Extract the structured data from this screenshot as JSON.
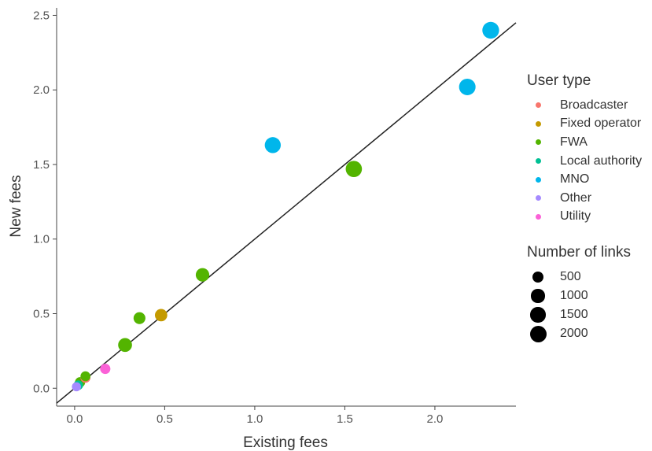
{
  "chart_data": {
    "type": "scatter",
    "xlabel": "Existing fees",
    "ylabel": "New fees",
    "xlim": [
      -0.1,
      2.45
    ],
    "ylim": [
      -0.12,
      2.55
    ],
    "x_ticks": [
      "0.0",
      "0.5",
      "1.0",
      "1.5",
      "2.0"
    ],
    "x_tick_values": [
      0.0,
      0.5,
      1.0,
      1.5,
      2.0
    ],
    "y_ticks": [
      "0.0",
      "0.5",
      "1.0",
      "1.5",
      "2.0",
      "2.5"
    ],
    "y_tick_values": [
      0.0,
      0.5,
      1.0,
      1.5,
      2.0,
      2.5
    ],
    "reference_line": {
      "slope": 1,
      "intercept": 0
    },
    "grid": false,
    "legend_placement": "right",
    "color_legend": {
      "title": "User type",
      "entries": [
        {
          "name": "Broadcaster",
          "color": "#F8766D"
        },
        {
          "name": "Fixed operator",
          "color": "#C49A00"
        },
        {
          "name": "FWA",
          "color": "#53B400"
        },
        {
          "name": "Local authority",
          "color": "#00C094"
        },
        {
          "name": "MNO",
          "color": "#00B6EB"
        },
        {
          "name": "Other",
          "color": "#A58AFF"
        },
        {
          "name": "Utility",
          "color": "#FB61D7"
        }
      ]
    },
    "size_legend": {
      "title": "Number of links",
      "entries": [
        {
          "label": "500",
          "value": 500
        },
        {
          "label": "1000",
          "value": 1000
        },
        {
          "label": "1500",
          "value": 1500
        },
        {
          "label": "2000",
          "value": 2000
        }
      ]
    },
    "points": [
      {
        "x": 2.31,
        "y": 2.4,
        "type": "MNO",
        "links": 2100
      },
      {
        "x": 2.18,
        "y": 2.02,
        "type": "MNO",
        "links": 2000
      },
      {
        "x": 1.1,
        "y": 1.63,
        "type": "MNO",
        "links": 1800
      },
      {
        "x": 1.55,
        "y": 1.47,
        "type": "FWA",
        "links": 1900
      },
      {
        "x": 0.71,
        "y": 0.76,
        "type": "FWA",
        "links": 1000
      },
      {
        "x": 0.36,
        "y": 0.47,
        "type": "FWA",
        "links": 600
      },
      {
        "x": 0.48,
        "y": 0.49,
        "type": "Fixed operator",
        "links": 700
      },
      {
        "x": 0.28,
        "y": 0.29,
        "type": "FWA",
        "links": 1100
      },
      {
        "x": 0.17,
        "y": 0.13,
        "type": "Utility",
        "links": 300
      },
      {
        "x": 0.06,
        "y": 0.07,
        "type": "Broadcaster",
        "links": 250
      },
      {
        "x": 0.06,
        "y": 0.08,
        "type": "FWA",
        "links": 250
      },
      {
        "x": 0.03,
        "y": 0.04,
        "type": "FWA",
        "links": 300
      },
      {
        "x": 0.02,
        "y": 0.02,
        "type": "Local authority",
        "links": 200
      },
      {
        "x": 0.01,
        "y": 0.01,
        "type": "Other",
        "links": 150
      }
    ]
  }
}
